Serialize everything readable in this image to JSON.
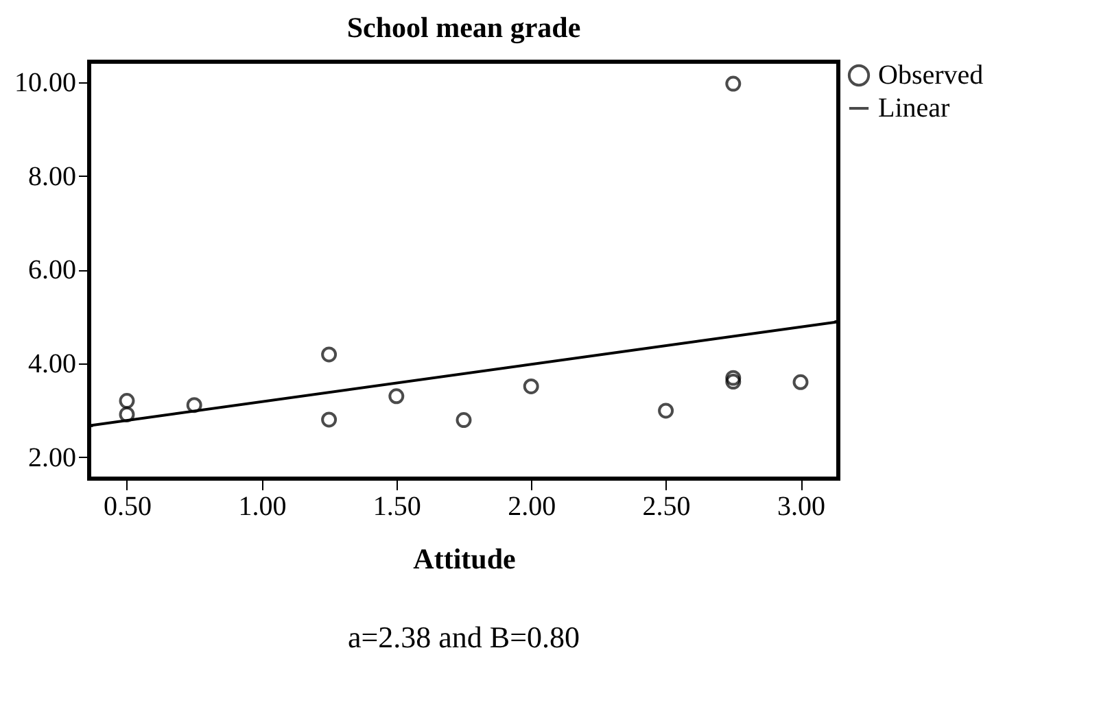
{
  "chart_data": {
    "type": "scatter",
    "title": "School mean grade",
    "xlabel": "Attitude",
    "xlim": [
      0.36,
      3.14
    ],
    "xticks": [
      {
        "value": 0.5,
        "label": "0.50"
      },
      {
        "value": 1,
        "label": "1.00"
      },
      {
        "value": 1.5,
        "label": "1.50"
      },
      {
        "value": 2,
        "label": "2.00"
      },
      {
        "value": 2.5,
        "label": "2.50"
      },
      {
        "value": 3,
        "label": "3.00"
      }
    ],
    "ylim": [
      1.54,
      10.44
    ],
    "yticks": [
      {
        "value": 2,
        "label": "2.00"
      },
      {
        "value": 4,
        "label": "4.00"
      },
      {
        "value": 6,
        "label": "6.00"
      },
      {
        "value": 8,
        "label": "8.00"
      },
      {
        "value": 10,
        "label": "10.00"
      }
    ],
    "series": [
      {
        "name": "Observed",
        "marker": "circle",
        "color": "#000000",
        "x": [
          0.5,
          0.5,
          0.75,
          1.25,
          1.25,
          1.5,
          1.75,
          2.0,
          2.5,
          2.75,
          2.75,
          2.75,
          3.0
        ],
        "values": [
          3.2,
          2.91,
          3.11,
          4.19,
          2.8,
          3.3,
          2.79,
          3.51,
          2.99,
          3.69,
          3.61,
          9.97,
          3.6
        ]
      },
      {
        "name": "Linear",
        "type": "line",
        "color": "#000000",
        "x": [
          0.36,
          3.14
        ],
        "values": [
          2.67,
          4.89
        ]
      }
    ],
    "legend": "top right",
    "grid": false,
    "annotations": [
      "a=2.38 and B=0.80"
    ]
  }
}
